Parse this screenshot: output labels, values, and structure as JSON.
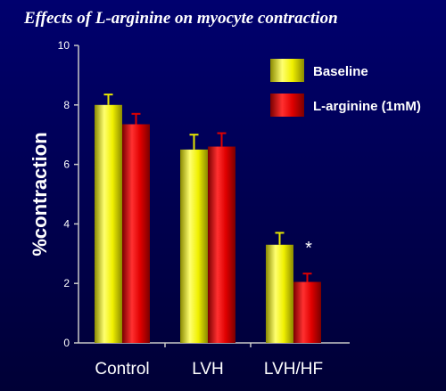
{
  "chart_data": {
    "type": "bar",
    "title": "Effects of L-arginine on myocyte contraction",
    "xlabel": "",
    "ylabel": "%contraction",
    "ylim": [
      0,
      10
    ],
    "yticks": [
      "0",
      "2",
      "4",
      "6",
      "8",
      "10"
    ],
    "categories": [
      "Control",
      "LVH",
      "LVH/HF"
    ],
    "series": [
      {
        "name": "Baseline",
        "color": "#e6e600",
        "values": [
          8.0,
          6.5,
          3.3
        ],
        "errors": [
          0.35,
          0.5,
          0.4
        ]
      },
      {
        "name": "L-arginine (1mM)",
        "color": "#dd0000",
        "values": [
          7.35,
          6.6,
          2.05
        ],
        "errors": [
          0.35,
          0.45,
          0.28
        ]
      }
    ],
    "annotations": [
      {
        "text": "*",
        "category": "LVH/HF"
      }
    ],
    "legend": "top-right",
    "grid": false
  }
}
